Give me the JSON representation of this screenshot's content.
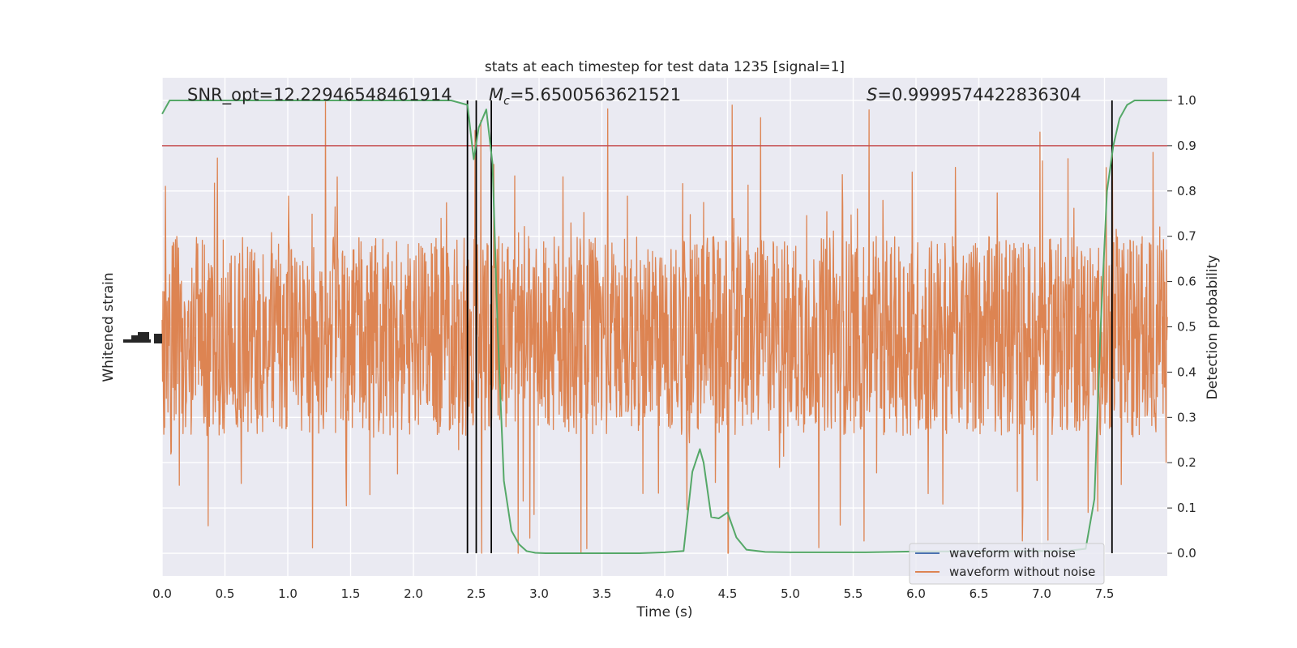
{
  "chart_data": {
    "type": "line",
    "title": "stats at each timestep for test data 1235 [signal=1]",
    "xlabel": "Time (s)",
    "ylabel_left": "Whitened strain",
    "ylabel_right": "Detection probability",
    "xlim": [
      0.0,
      8.0
    ],
    "ylim_right": [
      -0.05,
      1.05
    ],
    "x_ticks": [
      0.0,
      0.5,
      1.0,
      1.5,
      2.0,
      2.5,
      3.0,
      3.5,
      4.0,
      4.5,
      5.0,
      5.5,
      6.0,
      6.5,
      7.0,
      7.5
    ],
    "x_tick_labels": [
      "0.0",
      "0.5",
      "1.0",
      "1.5",
      "2.0",
      "2.5",
      "3.0",
      "3.5",
      "4.0",
      "4.5",
      "5.0",
      "5.5",
      "6.0",
      "6.5",
      "7.0",
      "7.5"
    ],
    "y_right_ticks": [
      0.0,
      0.1,
      0.2,
      0.3,
      0.4,
      0.5,
      0.6,
      0.7,
      0.8,
      0.9,
      1.0
    ],
    "y_right_tick_labels": [
      "0.0",
      "0.1",
      "0.2",
      "0.3",
      "0.4",
      "0.5",
      "0.6",
      "0.7",
      "0.8",
      "0.9",
      "1.0"
    ],
    "grid": true,
    "legend_location": "lower-right",
    "annotations": {
      "snr": "SNR_opt=12.22946548461914",
      "mc_symbol": "M",
      "mc_sub": "c",
      "mc_value": "=5.6500563621521",
      "s_symbol": "S",
      "s_value": "=0.9999574422836304"
    },
    "threshold": {
      "value": 0.9,
      "color": "#c44e52"
    },
    "vertical_markers": [
      2.43,
      2.5,
      2.62,
      7.56
    ],
    "series": [
      {
        "name": "waveform with noise",
        "color": "#4c72b0",
        "note_only_in_legend": true
      },
      {
        "name": "waveform without noise",
        "color": "#dd8452",
        "band_center_prob": 0.48,
        "band_halfwidth_prob": 0.22,
        "spike_max_prob": 1.0,
        "spike_min_prob": 0.0
      },
      {
        "name": "",
        "color": "#55a868",
        "x": [
          0.0,
          0.06,
          0.2,
          0.5,
          1.0,
          1.5,
          2.0,
          2.3,
          2.43,
          2.48,
          2.52,
          2.58,
          2.63,
          2.67,
          2.72,
          2.78,
          2.84,
          2.9,
          2.97,
          3.05,
          3.2,
          3.5,
          3.8,
          4.0,
          4.15,
          4.22,
          4.28,
          4.31,
          4.37,
          4.43,
          4.5,
          4.57,
          4.65,
          4.8,
          5.0,
          5.3,
          5.6,
          5.8,
          6.0,
          6.3,
          6.6,
          6.9,
          7.2,
          7.35,
          7.42,
          7.47,
          7.52,
          7.57,
          7.62,
          7.68,
          7.74,
          7.8,
          8.0
        ],
        "y": [
          0.97,
          1.0,
          1.0,
          1.0,
          1.0,
          1.0,
          1.0,
          1.0,
          0.99,
          0.87,
          0.94,
          0.98,
          0.86,
          0.5,
          0.16,
          0.05,
          0.02,
          0.005,
          0.001,
          0.0,
          0.0,
          0.0,
          0.0,
          0.002,
          0.005,
          0.18,
          0.23,
          0.2,
          0.08,
          0.077,
          0.09,
          0.035,
          0.008,
          0.003,
          0.002,
          0.002,
          0.002,
          0.003,
          0.004,
          0.004,
          0.004,
          0.005,
          0.005,
          0.01,
          0.12,
          0.5,
          0.8,
          0.9,
          0.96,
          0.99,
          1.0,
          1.0,
          1.0
        ]
      }
    ]
  }
}
